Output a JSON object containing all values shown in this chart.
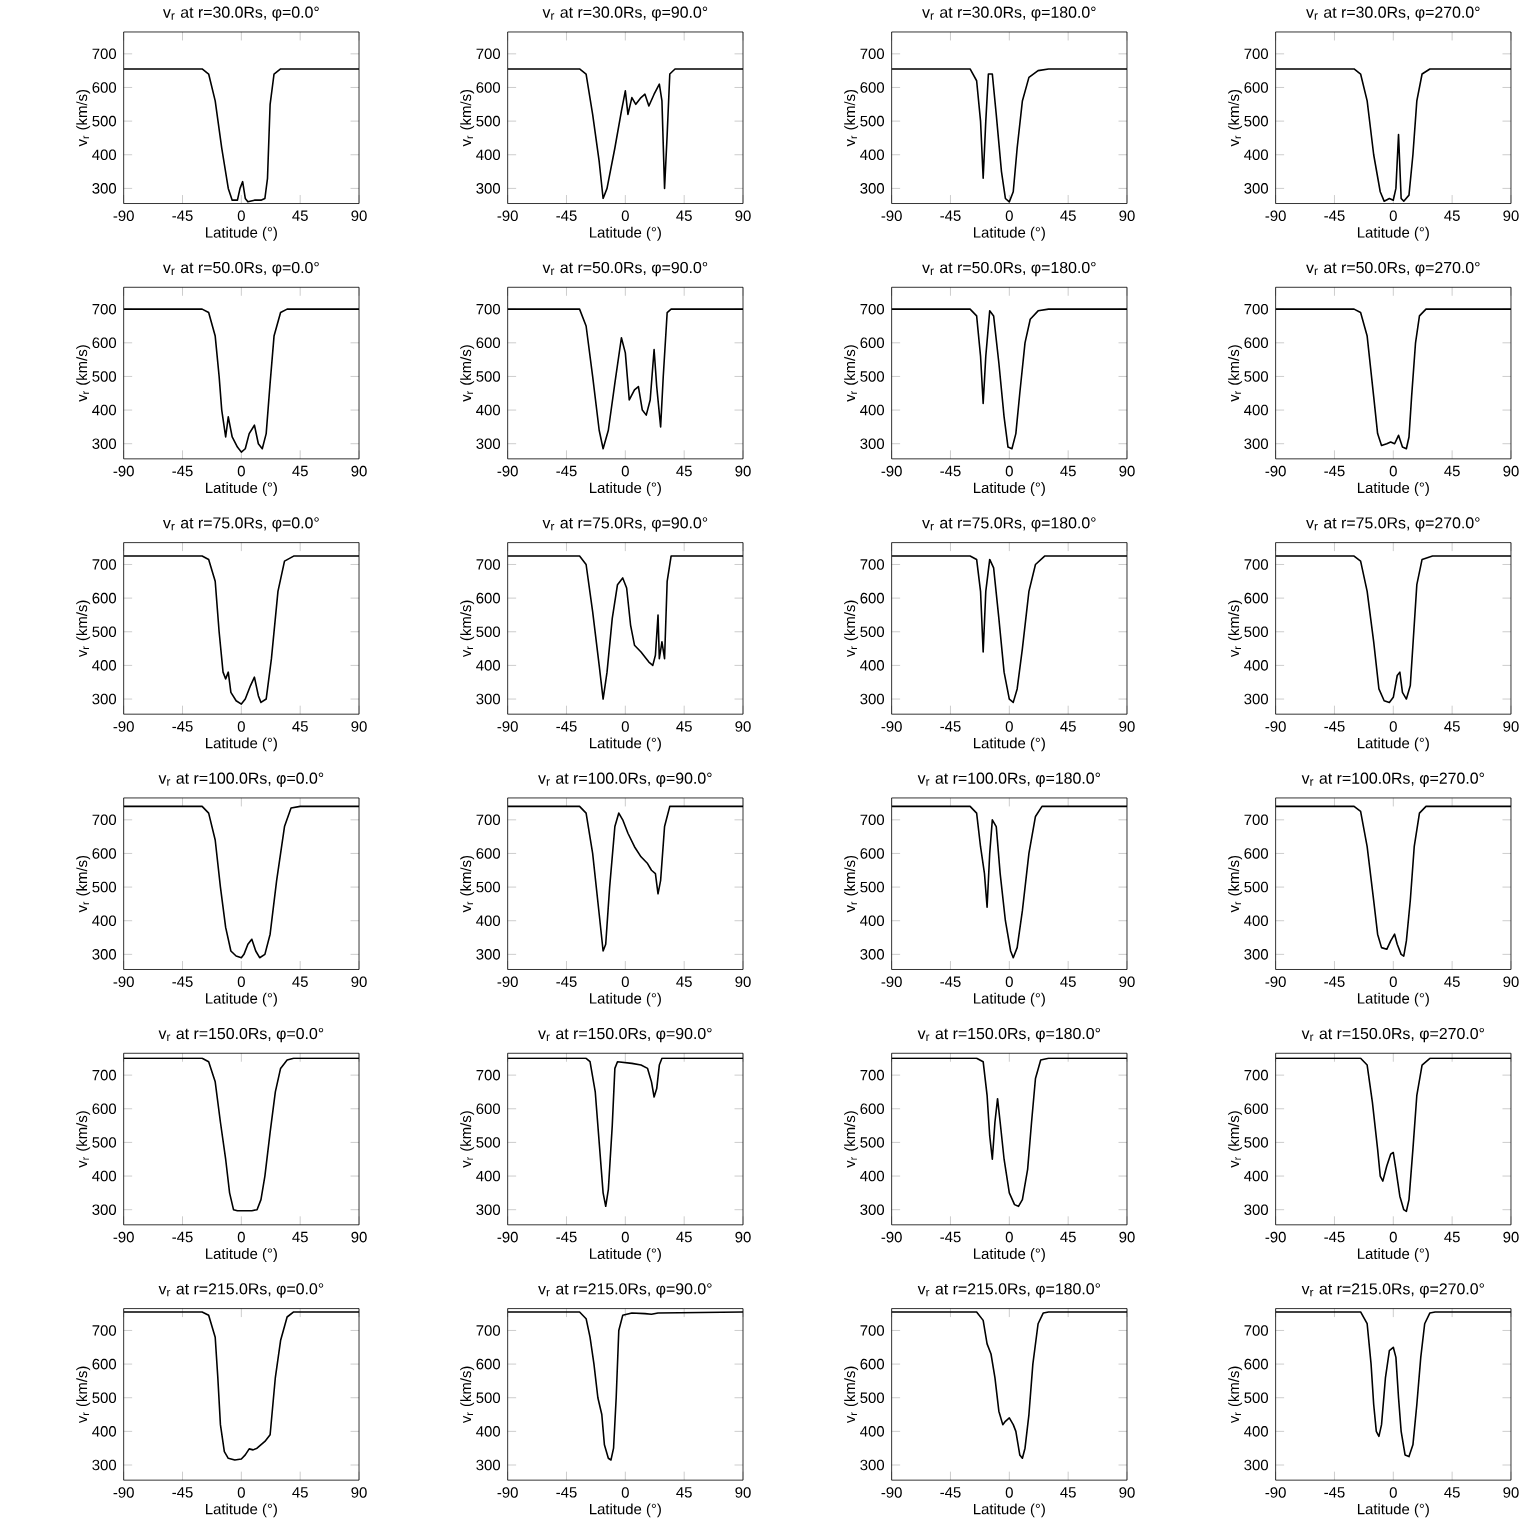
{
  "chart_data": [
    {
      "type": "line",
      "title": "v$_{r}$ at r=30.0Rs, φ=0.0°",
      "xlabel": "Latitude (°)",
      "ylabel": "v$_{r}$ (km/s)",
      "color": "#000000",
      "xlim": [
        -90,
        90
      ],
      "ylim": [
        255,
        765
      ],
      "xticks": [
        -90,
        -45,
        0,
        45,
        90
      ],
      "yticks": [
        300,
        400,
        500,
        600,
        700
      ],
      "x": [
        -90,
        -30,
        -25,
        -20,
        -15,
        -10,
        -7,
        -3,
        -1,
        1,
        3,
        5,
        10,
        15,
        18,
        20,
        22,
        25,
        30,
        90
      ],
      "values": [
        655,
        655,
        640,
        560,
        420,
        300,
        265,
        265,
        300,
        320,
        270,
        260,
        265,
        265,
        270,
        330,
        550,
        640,
        655,
        655
      ]
    },
    {
      "type": "line",
      "title": "v$_{r}$ at r=30.0Rs, φ=90.0°",
      "xlabel": "Latitude (°)",
      "ylabel": "v$_{r}$ (km/s)",
      "color": "#000000",
      "xlim": [
        -90,
        90
      ],
      "ylim": [
        255,
        765
      ],
      "xticks": [
        -90,
        -45,
        0,
        45,
        90
      ],
      "yticks": [
        300,
        400,
        500,
        600,
        700
      ],
      "x": [
        -90,
        -35,
        -30,
        -25,
        -20,
        -17,
        -14,
        -8,
        -3,
        0,
        2,
        5,
        8,
        12,
        15,
        18,
        22,
        26,
        28,
        30,
        32,
        34,
        38,
        90
      ],
      "values": [
        655,
        655,
        640,
        520,
        380,
        270,
        300,
        420,
        530,
        590,
        520,
        570,
        550,
        570,
        580,
        545,
        580,
        610,
        560,
        300,
        460,
        640,
        655,
        655
      ]
    },
    {
      "type": "line",
      "title": "v$_{r}$ at r=30.0Rs, φ=180.0°",
      "xlabel": "Latitude (°)",
      "ylabel": "v$_{r}$ (km/s)",
      "color": "#000000",
      "xlim": [
        -90,
        90
      ],
      "ylim": [
        255,
        765
      ],
      "xticks": [
        -90,
        -45,
        0,
        45,
        90
      ],
      "yticks": [
        300,
        400,
        500,
        600,
        700
      ],
      "x": [
        -90,
        -30,
        -25,
        -22,
        -20,
        -18,
        -16,
        -13,
        -10,
        -6,
        -3,
        0,
        3,
        6,
        10,
        15,
        22,
        30,
        90
      ],
      "values": [
        655,
        655,
        620,
        500,
        330,
        500,
        640,
        640,
        520,
        350,
        270,
        260,
        290,
        420,
        560,
        630,
        650,
        655,
        655
      ]
    },
    {
      "type": "line",
      "title": "v$_{r}$ at r=30.0Rs, φ=270.0°",
      "xlabel": "Latitude (°)",
      "ylabel": "v$_{r}$ (km/s)",
      "color": "#000000",
      "xlim": [
        -90,
        90
      ],
      "ylim": [
        255,
        765
      ],
      "xticks": [
        -90,
        -45,
        0,
        45,
        90
      ],
      "yticks": [
        300,
        400,
        500,
        600,
        700
      ],
      "x": [
        -90,
        -30,
        -25,
        -20,
        -15,
        -10,
        -7,
        -3,
        0,
        2,
        4,
        6,
        8,
        12,
        15,
        18,
        22,
        28,
        90
      ],
      "values": [
        655,
        655,
        640,
        560,
        400,
        290,
        262,
        270,
        265,
        300,
        460,
        270,
        262,
        280,
        400,
        560,
        640,
        655,
        655
      ]
    },
    {
      "type": "line",
      "title": "v$_{r}$ at r=50.0Rs, φ=0.0°",
      "xlabel": "Latitude (°)",
      "ylabel": "v$_{r}$ (km/s)",
      "color": "#000000",
      "xlim": [
        -90,
        90
      ],
      "ylim": [
        255,
        765
      ],
      "xticks": [
        -90,
        -45,
        0,
        45,
        90
      ],
      "yticks": [
        300,
        400,
        500,
        600,
        700
      ],
      "x": [
        -90,
        -30,
        -25,
        -20,
        -17,
        -15,
        -12,
        -10,
        -7,
        -3,
        0,
        3,
        6,
        10,
        13,
        16,
        19,
        22,
        25,
        30,
        35,
        90
      ],
      "values": [
        700,
        700,
        690,
        620,
        500,
        400,
        320,
        380,
        320,
        290,
        275,
        285,
        330,
        355,
        300,
        285,
        330,
        480,
        620,
        690,
        700,
        700
      ]
    },
    {
      "type": "line",
      "title": "v$_{r}$ at r=50.0Rs, φ=90.0°",
      "xlabel": "Latitude (°)",
      "ylabel": "v$_{r}$ (km/s)",
      "color": "#000000",
      "xlim": [
        -90,
        90
      ],
      "ylim": [
        255,
        765
      ],
      "xticks": [
        -90,
        -45,
        0,
        45,
        90
      ],
      "yticks": [
        300,
        400,
        500,
        600,
        700
      ],
      "x": [
        -90,
        -35,
        -30,
        -25,
        -20,
        -17,
        -13,
        -8,
        -3,
        0,
        3,
        7,
        10,
        13,
        16,
        19,
        22,
        24,
        27,
        29,
        32,
        35,
        90
      ],
      "values": [
        700,
        700,
        650,
        500,
        340,
        285,
        340,
        480,
        615,
        570,
        430,
        460,
        470,
        400,
        385,
        430,
        580,
        470,
        350,
        500,
        690,
        700,
        700
      ]
    },
    {
      "type": "line",
      "title": "v$_{r}$ at r=50.0Rs, φ=180.0°",
      "xlabel": "Latitude (°)",
      "ylabel": "v$_{r}$ (km/s)",
      "color": "#000000",
      "xlim": [
        -90,
        90
      ],
      "ylim": [
        255,
        765
      ],
      "xticks": [
        -90,
        -45,
        0,
        45,
        90
      ],
      "yticks": [
        300,
        400,
        500,
        600,
        700
      ],
      "x": [
        -90,
        -30,
        -25,
        -22,
        -20,
        -18,
        -15,
        -12,
        -8,
        -4,
        -1,
        2,
        5,
        8,
        12,
        16,
        22,
        30,
        90
      ],
      "values": [
        700,
        700,
        680,
        560,
        420,
        560,
        695,
        680,
        540,
        380,
        290,
        285,
        330,
        450,
        600,
        670,
        695,
        700,
        700
      ]
    },
    {
      "type": "line",
      "title": "v$_{r}$ at r=50.0Rs, φ=270.0°",
      "xlabel": "Latitude (°)",
      "ylabel": "v$_{r}$ (km/s)",
      "color": "#000000",
      "xlim": [
        -90,
        90
      ],
      "ylim": [
        255,
        765
      ],
      "xticks": [
        -90,
        -45,
        0,
        45,
        90
      ],
      "yticks": [
        300,
        400,
        500,
        600,
        700
      ],
      "x": [
        -90,
        -30,
        -25,
        -20,
        -15,
        -12,
        -9,
        -5,
        -2,
        1,
        4,
        7,
        10,
        12,
        14,
        17,
        20,
        25,
        90
      ],
      "values": [
        700,
        700,
        690,
        620,
        440,
        330,
        295,
        300,
        305,
        300,
        325,
        290,
        285,
        320,
        440,
        600,
        680,
        700,
        700
      ]
    },
    {
      "type": "line",
      "title": "v$_{r}$ at r=75.0Rs, φ=0.0°",
      "xlabel": "Latitude (°)",
      "ylabel": "v$_{r}$ (km/s)",
      "color": "#000000",
      "xlim": [
        -90,
        90
      ],
      "ylim": [
        255,
        765
      ],
      "xticks": [
        -90,
        -45,
        0,
        45,
        90
      ],
      "yticks": [
        300,
        400,
        500,
        600,
        700
      ],
      "x": [
        -90,
        -30,
        -25,
        -20,
        -17,
        -14,
        -12,
        -10,
        -8,
        -4,
        0,
        3,
        7,
        10,
        13,
        15,
        19,
        23,
        28,
        33,
        40,
        90
      ],
      "values": [
        725,
        725,
        715,
        650,
        500,
        380,
        360,
        380,
        320,
        295,
        285,
        300,
        340,
        365,
        310,
        290,
        300,
        420,
        620,
        710,
        725,
        725
      ]
    },
    {
      "type": "line",
      "title": "v$_{r}$ at r=75.0Rs, φ=90.0°",
      "xlabel": "Latitude (°)",
      "ylabel": "v$_{r}$ (km/s)",
      "color": "#000000",
      "xlim": [
        -90,
        90
      ],
      "ylim": [
        255,
        765
      ],
      "xticks": [
        -90,
        -45,
        0,
        45,
        90
      ],
      "yticks": [
        300,
        400,
        500,
        600,
        700
      ],
      "x": [
        -90,
        -35,
        -30,
        -25,
        -20,
        -17,
        -14,
        -10,
        -6,
        -2,
        1,
        4,
        7,
        12,
        18,
        21,
        23,
        25,
        26,
        28,
        30,
        32,
        35,
        90
      ],
      "values": [
        725,
        725,
        700,
        560,
        400,
        300,
        380,
        540,
        640,
        660,
        630,
        520,
        460,
        440,
        410,
        400,
        430,
        550,
        420,
        470,
        420,
        650,
        725,
        725
      ]
    },
    {
      "type": "line",
      "title": "v$_{r}$ at r=75.0Rs, φ=180.0°",
      "xlabel": "Latitude (°)",
      "ylabel": "v$_{r}$ (km/s)",
      "color": "#000000",
      "xlim": [
        -90,
        90
      ],
      "ylim": [
        255,
        765
      ],
      "xticks": [
        -90,
        -45,
        0,
        45,
        90
      ],
      "yticks": [
        300,
        400,
        500,
        600,
        700
      ],
      "x": [
        -90,
        -30,
        -25,
        -22,
        -20,
        -18,
        -15,
        -12,
        -8,
        -4,
        0,
        3,
        6,
        10,
        15,
        20,
        27,
        90
      ],
      "values": [
        725,
        725,
        715,
        620,
        440,
        620,
        715,
        690,
        540,
        380,
        300,
        290,
        330,
        450,
        620,
        700,
        725,
        725
      ]
    },
    {
      "type": "line",
      "title": "v$_{r}$ at r=75.0Rs, φ=270.0°",
      "xlabel": "Latitude (°)",
      "ylabel": "v$_{r}$ (km/s)",
      "color": "#000000",
      "xlim": [
        -90,
        90
      ],
      "ylim": [
        255,
        765
      ],
      "xticks": [
        -90,
        -45,
        0,
        45,
        90
      ],
      "yticks": [
        300,
        400,
        500,
        600,
        700
      ],
      "x": [
        -90,
        -30,
        -25,
        -20,
        -15,
        -11,
        -7,
        -3,
        0,
        3,
        5,
        7,
        10,
        13,
        15,
        18,
        22,
        30,
        90
      ],
      "values": [
        725,
        725,
        710,
        620,
        470,
        330,
        295,
        290,
        305,
        370,
        380,
        320,
        300,
        340,
        460,
        640,
        715,
        725,
        725
      ]
    },
    {
      "type": "line",
      "title": "v$_{r}$ at r=100.0Rs, φ=0.0°",
      "xlabel": "Latitude (°)",
      "ylabel": "v$_{r}$ (km/s)",
      "color": "#000000",
      "xlim": [
        -90,
        90
      ],
      "ylim": [
        255,
        765
      ],
      "xticks": [
        -90,
        -45,
        0,
        45,
        90
      ],
      "yticks": [
        300,
        400,
        500,
        600,
        700
      ],
      "x": [
        -90,
        -30,
        -25,
        -20,
        -16,
        -12,
        -8,
        -4,
        0,
        2,
        5,
        8,
        11,
        14,
        18,
        22,
        27,
        33,
        38,
        45,
        90
      ],
      "values": [
        740,
        740,
        720,
        640,
        500,
        380,
        310,
        295,
        290,
        300,
        330,
        345,
        310,
        290,
        300,
        360,
        520,
        680,
        735,
        740,
        740
      ]
    },
    {
      "type": "line",
      "title": "v$_{r}$ at r=100.0Rs, φ=90.0°",
      "xlabel": "Latitude (°)",
      "ylabel": "v$_{r}$ (km/s)",
      "color": "#000000",
      "xlim": [
        -90,
        90
      ],
      "ylim": [
        255,
        765
      ],
      "xticks": [
        -90,
        -45,
        0,
        45,
        90
      ],
      "yticks": [
        300,
        400,
        500,
        600,
        700
      ],
      "x": [
        -90,
        -35,
        -30,
        -25,
        -20,
        -17,
        -15,
        -12,
        -8,
        -5,
        -2,
        2,
        7,
        12,
        17,
        20,
        23,
        25,
        27,
        30,
        34,
        90
      ],
      "values": [
        740,
        740,
        720,
        600,
        420,
        310,
        330,
        500,
        680,
        720,
        700,
        660,
        620,
        590,
        570,
        550,
        540,
        480,
        520,
        680,
        740,
        740
      ]
    },
    {
      "type": "line",
      "title": "v$_{r}$ at r=100.0Rs, φ=180.0°",
      "xlabel": "Latitude (°)",
      "ylabel": "v$_{r}$ (km/s)",
      "color": "#000000",
      "xlim": [
        -90,
        90
      ],
      "ylim": [
        255,
        765
      ],
      "xticks": [
        -90,
        -45,
        0,
        45,
        90
      ],
      "yticks": [
        300,
        400,
        500,
        600,
        700
      ],
      "x": [
        -90,
        -30,
        -25,
        -22,
        -19,
        -17,
        -15,
        -13,
        -10,
        -7,
        -3,
        1,
        3,
        6,
        10,
        15,
        20,
        25,
        90
      ],
      "values": [
        740,
        740,
        720,
        620,
        540,
        440,
        600,
        700,
        680,
        540,
        400,
        310,
        290,
        320,
        430,
        600,
        710,
        740,
        740
      ]
    },
    {
      "type": "line",
      "title": "v$_{r}$ at r=100.0Rs, φ=270.0°",
      "xlabel": "Latitude (°)",
      "ylabel": "v$_{r}$ (km/s)",
      "color": "#000000",
      "xlim": [
        -90,
        90
      ],
      "ylim": [
        255,
        765
      ],
      "xticks": [
        -90,
        -45,
        0,
        45,
        90
      ],
      "yticks": [
        300,
        400,
        500,
        600,
        700
      ],
      "x": [
        -90,
        -30,
        -25,
        -20,
        -15,
        -12,
        -9,
        -5,
        -2,
        1,
        3,
        6,
        8,
        10,
        13,
        16,
        20,
        25,
        90
      ],
      "values": [
        740,
        740,
        725,
        620,
        460,
        360,
        320,
        315,
        340,
        360,
        330,
        300,
        295,
        340,
        460,
        620,
        720,
        740,
        740
      ]
    },
    {
      "type": "line",
      "title": "v$_{r}$ at r=150.0Rs, φ=0.0°",
      "xlabel": "Latitude (°)",
      "ylabel": "v$_{r}$ (km/s)",
      "color": "#000000",
      "xlim": [
        -90,
        90
      ],
      "ylim": [
        255,
        765
      ],
      "xticks": [
        -90,
        -45,
        0,
        45,
        90
      ],
      "yticks": [
        300,
        400,
        500,
        600,
        700
      ],
      "x": [
        -90,
        -30,
        -25,
        -20,
        -16,
        -12,
        -9,
        -6,
        -3,
        3,
        8,
        12,
        15,
        18,
        22,
        26,
        30,
        35,
        40,
        90
      ],
      "values": [
        750,
        750,
        740,
        680,
        560,
        450,
        350,
        300,
        297,
        297,
        297,
        300,
        330,
        400,
        530,
        650,
        720,
        745,
        750,
        750
      ]
    },
    {
      "type": "line",
      "title": "v$_{r}$ at r=150.0Rs, φ=90.0°",
      "xlabel": "Latitude (°)",
      "ylabel": "v$_{r}$ (km/s)",
      "color": "#000000",
      "xlim": [
        -90,
        90
      ],
      "ylim": [
        255,
        765
      ],
      "xticks": [
        -90,
        -45,
        0,
        45,
        90
      ],
      "yticks": [
        300,
        400,
        500,
        600,
        700
      ],
      "x": [
        -90,
        -30,
        -27,
        -23,
        -20,
        -17,
        -15,
        -13,
        -10,
        -8,
        -6,
        5,
        12,
        17,
        20,
        22,
        24,
        26,
        28,
        90
      ],
      "values": [
        750,
        750,
        740,
        650,
        500,
        350,
        310,
        360,
        550,
        720,
        740,
        735,
        730,
        720,
        680,
        635,
        660,
        730,
        750,
        750
      ]
    },
    {
      "type": "line",
      "title": "v$_{r}$ at r=150.0Rs, φ=180.0°",
      "xlabel": "Latitude (°)",
      "ylabel": "v$_{r}$ (km/s)",
      "color": "#000000",
      "xlim": [
        -90,
        90
      ],
      "ylim": [
        255,
        765
      ],
      "xticks": [
        -90,
        -45,
        0,
        45,
        90
      ],
      "yticks": [
        300,
        400,
        500,
        600,
        700
      ],
      "x": [
        -90,
        -25,
        -20,
        -17,
        -15,
        -13,
        -11,
        -9,
        -7,
        -4,
        0,
        4,
        7,
        10,
        14,
        17,
        20,
        24,
        30,
        90
      ],
      "values": [
        750,
        750,
        740,
        640,
        520,
        450,
        560,
        630,
        560,
        450,
        350,
        315,
        310,
        330,
        420,
        560,
        690,
        745,
        750,
        750
      ]
    },
    {
      "type": "line",
      "title": "v$_{r}$ at r=150.0Rs, φ=270.0°",
      "xlabel": "Latitude (°)",
      "ylabel": "v$_{r}$ (km/s)",
      "color": "#000000",
      "xlim": [
        -90,
        90
      ],
      "ylim": [
        255,
        765
      ],
      "xticks": [
        -90,
        -45,
        0,
        45,
        90
      ],
      "yticks": [
        300,
        400,
        500,
        600,
        700
      ],
      "x": [
        -90,
        -25,
        -20,
        -16,
        -12,
        -10,
        -8,
        -5,
        -2,
        0,
        2,
        5,
        8,
        10,
        12,
        15,
        18,
        22,
        28,
        90
      ],
      "values": [
        750,
        750,
        730,
        620,
        480,
        400,
        385,
        430,
        465,
        470,
        420,
        340,
        300,
        295,
        330,
        480,
        640,
        730,
        750,
        750
      ]
    },
    {
      "type": "line",
      "title": "v$_{r}$ at r=215.0Rs, φ=0.0°",
      "xlabel": "Latitude (°)",
      "ylabel": "v$_{r}$ (km/s)",
      "color": "#000000",
      "xlim": [
        -90,
        90
      ],
      "ylim": [
        255,
        765
      ],
      "xticks": [
        -90,
        -45,
        0,
        45,
        90
      ],
      "yticks": [
        300,
        400,
        500,
        600,
        700
      ],
      "x": [
        -90,
        -30,
        -25,
        -20,
        -18,
        -16,
        -13,
        -10,
        -5,
        0,
        3,
        6,
        9,
        12,
        18,
        22,
        26,
        30,
        35,
        40,
        90
      ],
      "values": [
        755,
        755,
        745,
        680,
        560,
        420,
        340,
        320,
        315,
        318,
        330,
        348,
        345,
        350,
        370,
        390,
        560,
        670,
        740,
        755,
        755
      ]
    },
    {
      "type": "line",
      "title": "v$_{r}$ at r=215.0Rs, φ=90.0°",
      "xlabel": "Latitude (°)",
      "ylabel": "v$_{r}$ (km/s)",
      "color": "#000000",
      "xlim": [
        -90,
        90
      ],
      "ylim": [
        255,
        765
      ],
      "xticks": [
        -90,
        -45,
        0,
        45,
        90
      ],
      "yticks": [
        300,
        400,
        500,
        600,
        700
      ],
      "x": [
        -90,
        -35,
        -30,
        -27,
        -24,
        -21,
        -18,
        -16,
        -13,
        -11,
        -9,
        -7,
        -5,
        -2,
        5,
        15,
        20,
        25,
        90
      ],
      "values": [
        755,
        755,
        735,
        680,
        600,
        500,
        450,
        360,
        320,
        315,
        350,
        500,
        700,
        745,
        752,
        750,
        748,
        752,
        755
      ]
    },
    {
      "type": "line",
      "title": "v$_{r}$ at r=215.0Rs, φ=180.0°",
      "xlabel": "Latitude (°)",
      "ylabel": "v$_{r}$ (km/s)",
      "color": "#000000",
      "xlim": [
        -90,
        90
      ],
      "ylim": [
        255,
        765
      ],
      "xticks": [
        -90,
        -45,
        0,
        45,
        90
      ],
      "yticks": [
        300,
        400,
        500,
        600,
        700
      ],
      "x": [
        -90,
        -25,
        -20,
        -17,
        -14,
        -11,
        -8,
        -5,
        -3,
        0,
        3,
        5,
        8,
        10,
        12,
        15,
        18,
        22,
        26,
        30,
        90
      ],
      "values": [
        755,
        755,
        730,
        660,
        630,
        560,
        460,
        420,
        430,
        440,
        420,
        400,
        330,
        320,
        350,
        450,
        600,
        720,
        752,
        755,
        755
      ]
    },
    {
      "type": "line",
      "title": "v$_{r}$ at r=215.0Rs, φ=270.0°",
      "xlabel": "Latitude (°)",
      "ylabel": "v$_{r}$ (km/s)",
      "color": "#000000",
      "xlim": [
        -90,
        90
      ],
      "ylim": [
        255,
        765
      ],
      "xticks": [
        -90,
        -45,
        0,
        45,
        90
      ],
      "yticks": [
        300,
        400,
        500,
        600,
        700
      ],
      "x": [
        -90,
        -25,
        -20,
        -17,
        -15,
        -13,
        -11,
        -9,
        -6,
        -3,
        0,
        2,
        4,
        6,
        9,
        12,
        15,
        18,
        21,
        24,
        28,
        32,
        90
      ],
      "values": [
        755,
        755,
        720,
        600,
        480,
        400,
        385,
        420,
        560,
        640,
        650,
        620,
        500,
        400,
        330,
        325,
        360,
        480,
        620,
        720,
        752,
        755,
        755
      ]
    }
  ]
}
